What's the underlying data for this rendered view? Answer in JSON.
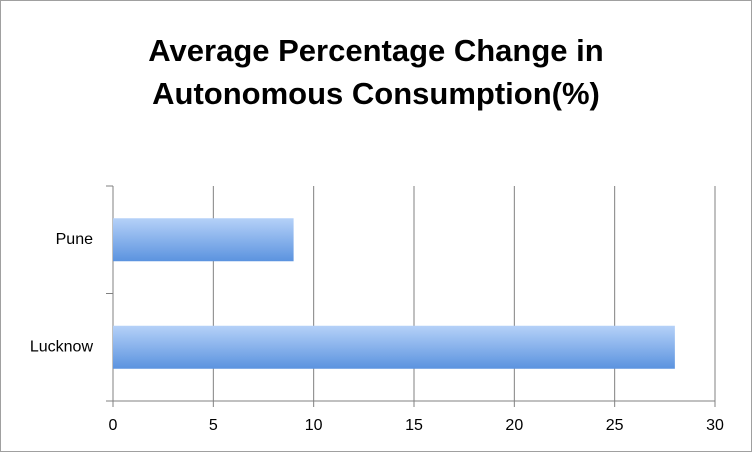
{
  "chart_data": {
    "type": "hbar",
    "title": "Average Percentage Change in Autonomous Consumption(%)",
    "categories": [
      "Lucknow",
      "Pune"
    ],
    "values": [
      28,
      9
    ],
    "color": "#5b93df",
    "xlim": [
      0,
      30
    ],
    "xticks": [
      0,
      5,
      10,
      15,
      20,
      25,
      30
    ],
    "grid": true
  }
}
